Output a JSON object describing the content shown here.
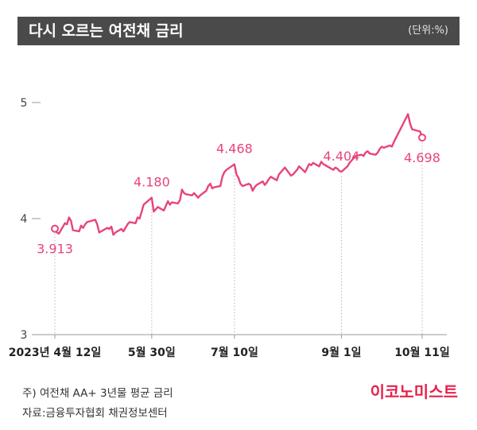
{
  "header": {
    "title": "다시 오르는 여전채 금리",
    "unit": "(단위:%)"
  },
  "footnotes": {
    "note": "주) 여전채 AA+ 3년물 평균 금리",
    "source": "자료:금융투자협회 채권정보센터"
  },
  "brand": "이코노미스트",
  "colors": {
    "line": "#e8447a",
    "header_bg": "#4a4a4a",
    "brand": "#e6214b"
  },
  "chart_data": {
    "type": "line",
    "title": "다시 오르는 여전채 금리",
    "xlabel": "",
    "ylabel": "(단위:%)",
    "ylim": [
      3,
      5
    ],
    "yticks": [
      {
        "value": 5,
        "label": "5"
      },
      {
        "value": 4,
        "label": "4"
      },
      {
        "value": 3,
        "label": "3"
      }
    ],
    "xticks": [
      {
        "date": "2023-04-12",
        "label": "2023년 4월 12일"
      },
      {
        "date": "2023-05-30",
        "label": "5월 30일"
      },
      {
        "date": "2023-07-10",
        "label": "7월 10일"
      },
      {
        "date": "2023-09-01",
        "label": "9월 1일"
      },
      {
        "date": "2023-10-11",
        "label": "10월 11일"
      }
    ],
    "annotations": [
      {
        "date": "2023-04-12",
        "value": 3.913,
        "label": "3.913",
        "position": "below"
      },
      {
        "date": "2023-05-30",
        "value": 4.18,
        "label": "4.180",
        "position": "above"
      },
      {
        "date": "2023-07-10",
        "value": 4.468,
        "label": "4.468",
        "position": "above"
      },
      {
        "date": "2023-09-01",
        "value": 4.404,
        "label": "4.404",
        "position": "above"
      },
      {
        "date": "2023-10-11",
        "value": 4.698,
        "label": "4.698",
        "position": "below"
      }
    ],
    "grid": false,
    "series": [
      {
        "values": [
          [
            "2023-04-12",
            3.913
          ],
          [
            "2023-04-13",
            3.88
          ],
          [
            "2023-04-14",
            3.87
          ],
          [
            "2023-04-17",
            3.96
          ],
          [
            "2023-04-18",
            3.95
          ],
          [
            "2023-04-19",
            4.01
          ],
          [
            "2023-04-20",
            3.98
          ],
          [
            "2023-04-21",
            3.9
          ],
          [
            "2023-04-24",
            3.89
          ],
          [
            "2023-04-25",
            3.94
          ],
          [
            "2023-04-26",
            3.92
          ],
          [
            "2023-04-27",
            3.95
          ],
          [
            "2023-04-28",
            3.97
          ],
          [
            "2023-05-02",
            3.99
          ],
          [
            "2023-05-03",
            3.95
          ],
          [
            "2023-05-04",
            3.88
          ],
          [
            "2023-05-08",
            3.92
          ],
          [
            "2023-05-09",
            3.91
          ],
          [
            "2023-05-10",
            3.93
          ],
          [
            "2023-05-11",
            3.86
          ],
          [
            "2023-05-12",
            3.88
          ],
          [
            "2023-05-15",
            3.91
          ],
          [
            "2023-05-16",
            3.89
          ],
          [
            "2023-05-17",
            3.92
          ],
          [
            "2023-05-18",
            3.95
          ],
          [
            "2023-05-19",
            3.97
          ],
          [
            "2023-05-22",
            3.96
          ],
          [
            "2023-05-23",
            4.01
          ],
          [
            "2023-05-24",
            4.0
          ],
          [
            "2023-05-25",
            4.06
          ],
          [
            "2023-05-26",
            4.12
          ],
          [
            "2023-05-30",
            4.18
          ],
          [
            "2023-05-31",
            4.06
          ],
          [
            "2023-06-01",
            4.08
          ],
          [
            "2023-06-02",
            4.1
          ],
          [
            "2023-06-05",
            4.07
          ],
          [
            "2023-06-07",
            4.15
          ],
          [
            "2023-06-08",
            4.12
          ],
          [
            "2023-06-09",
            4.14
          ],
          [
            "2023-06-12",
            4.13
          ],
          [
            "2023-06-13",
            4.16
          ],
          [
            "2023-06-14",
            4.25
          ],
          [
            "2023-06-15",
            4.22
          ],
          [
            "2023-06-16",
            4.21
          ],
          [
            "2023-06-19",
            4.2
          ],
          [
            "2023-06-20",
            4.22
          ],
          [
            "2023-06-21",
            4.2
          ],
          [
            "2023-06-22",
            4.18
          ],
          [
            "2023-06-23",
            4.2
          ],
          [
            "2023-06-26",
            4.24
          ],
          [
            "2023-06-27",
            4.28
          ],
          [
            "2023-06-28",
            4.3
          ],
          [
            "2023-06-29",
            4.26
          ],
          [
            "2023-06-30",
            4.27
          ],
          [
            "2023-07-03",
            4.28
          ],
          [
            "2023-07-04",
            4.36
          ],
          [
            "2023-07-05",
            4.4
          ],
          [
            "2023-07-06",
            4.42
          ],
          [
            "2023-07-10",
            4.468
          ],
          [
            "2023-07-11",
            4.38
          ],
          [
            "2023-07-12",
            4.35
          ],
          [
            "2023-07-13",
            4.3
          ],
          [
            "2023-07-14",
            4.28
          ],
          [
            "2023-07-17",
            4.3
          ],
          [
            "2023-07-18",
            4.29
          ],
          [
            "2023-07-19",
            4.24
          ],
          [
            "2023-07-20",
            4.27
          ],
          [
            "2023-07-21",
            4.29
          ],
          [
            "2023-07-24",
            4.32
          ],
          [
            "2023-07-25",
            4.29
          ],
          [
            "2023-07-26",
            4.31
          ],
          [
            "2023-07-27",
            4.34
          ],
          [
            "2023-07-28",
            4.36
          ],
          [
            "2023-07-31",
            4.33
          ],
          [
            "2023-08-01",
            4.38
          ],
          [
            "2023-08-02",
            4.4
          ],
          [
            "2023-08-03",
            4.42
          ],
          [
            "2023-08-04",
            4.44
          ],
          [
            "2023-08-07",
            4.37
          ],
          [
            "2023-08-08",
            4.38
          ],
          [
            "2023-08-09",
            4.4
          ],
          [
            "2023-08-10",
            4.42
          ],
          [
            "2023-08-11",
            4.45
          ],
          [
            "2023-08-14",
            4.4
          ],
          [
            "2023-08-16",
            4.47
          ],
          [
            "2023-08-17",
            4.46
          ],
          [
            "2023-08-18",
            4.48
          ],
          [
            "2023-08-21",
            4.45
          ],
          [
            "2023-08-22",
            4.49
          ],
          [
            "2023-08-23",
            4.47
          ],
          [
            "2023-08-24",
            4.46
          ],
          [
            "2023-08-25",
            4.45
          ],
          [
            "2023-08-28",
            4.42
          ],
          [
            "2023-08-29",
            4.44
          ],
          [
            "2023-08-30",
            4.43
          ],
          [
            "2023-08-31",
            4.41
          ],
          [
            "2023-09-01",
            4.404
          ],
          [
            "2023-09-04",
            4.45
          ],
          [
            "2023-09-05",
            4.48
          ],
          [
            "2023-09-06",
            4.5
          ],
          [
            "2023-09-07",
            4.52
          ],
          [
            "2023-09-08",
            4.54
          ],
          [
            "2023-09-11",
            4.55
          ],
          [
            "2023-09-12",
            4.54
          ],
          [
            "2023-09-13",
            4.57
          ],
          [
            "2023-09-14",
            4.58
          ],
          [
            "2023-09-15",
            4.56
          ],
          [
            "2023-09-18",
            4.55
          ],
          [
            "2023-09-19",
            4.57
          ],
          [
            "2023-09-20",
            4.6
          ],
          [
            "2023-09-21",
            4.62
          ],
          [
            "2023-09-22",
            4.61
          ],
          [
            "2023-09-25",
            4.63
          ],
          [
            "2023-09-26",
            4.62
          ],
          [
            "2023-09-27",
            4.66
          ],
          [
            "2023-10-04",
            4.9
          ],
          [
            "2023-10-05",
            4.82
          ],
          [
            "2023-10-06",
            4.77
          ],
          [
            "2023-10-10",
            4.75
          ],
          [
            "2023-10-11",
            4.698
          ]
        ]
      }
    ]
  }
}
